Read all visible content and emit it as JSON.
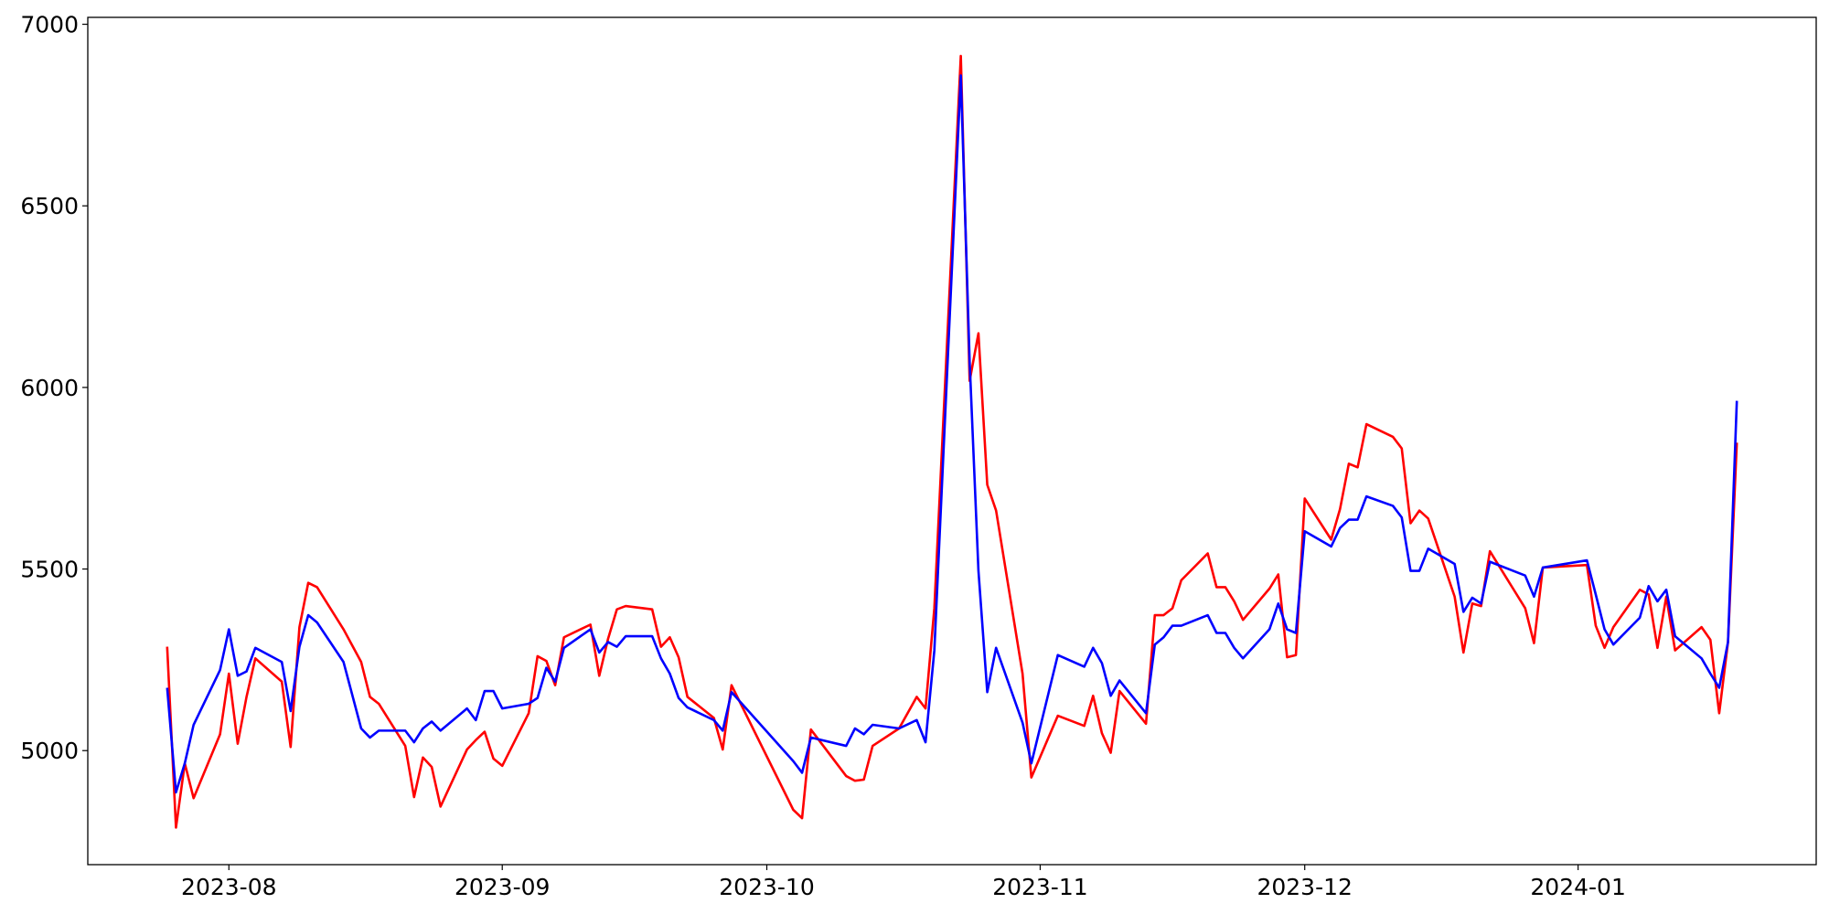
{
  "chart_data": {
    "type": "line",
    "x": [
      "2023-07-25",
      "2023-07-26",
      "2023-07-27",
      "2023-07-28",
      "2023-07-31",
      "2023-08-01",
      "2023-08-02",
      "2023-08-03",
      "2023-08-04",
      "2023-08-07",
      "2023-08-08",
      "2023-08-09",
      "2023-08-10",
      "2023-08-11",
      "2023-08-14",
      "2023-08-16",
      "2023-08-17",
      "2023-08-18",
      "2023-08-21",
      "2023-08-22",
      "2023-08-23",
      "2023-08-24",
      "2023-08-25",
      "2023-08-28",
      "2023-08-29",
      "2023-08-30",
      "2023-08-31",
      "2023-09-01",
      "2023-09-04",
      "2023-09-05",
      "2023-09-06",
      "2023-09-07",
      "2023-09-08",
      "2023-09-11",
      "2023-09-12",
      "2023-09-13",
      "2023-09-14",
      "2023-09-15",
      "2023-09-18",
      "2023-09-19",
      "2023-09-20",
      "2023-09-21",
      "2023-09-22",
      "2023-09-25",
      "2023-09-26",
      "2023-09-27",
      "2023-10-04",
      "2023-10-05",
      "2023-10-06",
      "2023-10-10",
      "2023-10-11",
      "2023-10-12",
      "2023-10-13",
      "2023-10-16",
      "2023-10-18",
      "2023-10-19",
      "2023-10-20",
      "2023-10-23",
      "2023-10-24",
      "2023-10-25",
      "2023-10-26",
      "2023-10-27",
      "2023-10-30",
      "2023-10-31",
      "2023-11-03",
      "2023-11-06",
      "2023-11-07",
      "2023-11-08",
      "2023-11-09",
      "2023-11-10",
      "2023-11-13",
      "2023-11-14",
      "2023-11-15",
      "2023-11-16",
      "2023-11-17",
      "2023-11-20",
      "2023-11-21",
      "2023-11-22",
      "2023-11-23",
      "2023-11-24",
      "2023-11-27",
      "2023-11-28",
      "2023-11-29",
      "2023-11-30",
      "2023-12-01",
      "2023-12-04",
      "2023-12-05",
      "2023-12-06",
      "2023-12-07",
      "2023-12-08",
      "2023-12-11",
      "2023-12-12",
      "2023-12-13",
      "2023-12-14",
      "2023-12-15",
      "2023-12-18",
      "2023-12-19",
      "2023-12-20",
      "2023-12-21",
      "2023-12-22",
      "2023-12-26",
      "2023-12-27",
      "2023-12-28",
      "2024-01-02",
      "2024-01-03",
      "2024-01-04",
      "2024-01-05",
      "2024-01-08",
      "2024-01-09",
      "2024-01-10",
      "2024-01-11",
      "2024-01-12",
      "2024-01-15",
      "2024-01-16",
      "2024-01-17",
      "2024-01-18",
      "2024-01-19"
    ],
    "series": [
      {
        "color": "#ff0000",
        "values": [
          5286,
          4788,
          4965,
          4869,
          5045,
          5212,
          5019,
          5148,
          5254,
          5190,
          5010,
          5340,
          5462,
          5450,
          5334,
          5244,
          5148,
          5129,
          5013,
          4872,
          4981,
          4955,
          4846,
          5003,
          5029,
          5052,
          4978,
          4958,
          5103,
          5260,
          5247,
          5180,
          5312,
          5347,
          5206,
          5308,
          5389,
          5398,
          5389,
          5286,
          5312,
          5257,
          5148,
          5090,
          5003,
          5180,
          4837,
          4814,
          5058,
          4930,
          4917,
          4920,
          5013,
          5061,
          5148,
          5116,
          5392,
          6913,
          6018,
          6149,
          5732,
          5661,
          5212,
          4926,
          5096,
          5068,
          5151,
          5048,
          4994,
          5164,
          5074,
          5373,
          5373,
          5392,
          5469,
          5543,
          5450,
          5450,
          5411,
          5360,
          5446,
          5485,
          5257,
          5263,
          5694,
          5581,
          5665,
          5790,
          5780,
          5899,
          5864,
          5832,
          5626,
          5661,
          5639,
          5424,
          5270,
          5405,
          5398,
          5549,
          5392,
          5296,
          5504,
          5511,
          5344,
          5283,
          5340,
          5443,
          5430,
          5283,
          5424,
          5276,
          5340,
          5305,
          5103,
          5299,
          5848
        ]
      },
      {
        "color": "#0000ff",
        "values": [
          5173,
          4885,
          4965,
          5071,
          5222,
          5334,
          5206,
          5218,
          5283,
          5244,
          5109,
          5286,
          5373,
          5353,
          5244,
          5061,
          5036,
          5055,
          5055,
          5023,
          5061,
          5080,
          5055,
          5116,
          5084,
          5164,
          5164,
          5116,
          5129,
          5145,
          5228,
          5190,
          5283,
          5334,
          5270,
          5299,
          5286,
          5315,
          5315,
          5254,
          5212,
          5145,
          5119,
          5084,
          5055,
          5161,
          4971,
          4939,
          5036,
          5013,
          5061,
          5045,
          5071,
          5061,
          5084,
          5023,
          5276,
          6859,
          6072,
          5495,
          5161,
          5283,
          5077,
          4965,
          5263,
          5231,
          5283,
          5241,
          5151,
          5193,
          5103,
          5292,
          5312,
          5344,
          5344,
          5373,
          5324,
          5324,
          5283,
          5254,
          5334,
          5405,
          5334,
          5324,
          5604,
          5562,
          5613,
          5636,
          5636,
          5700,
          5674,
          5642,
          5495,
          5495,
          5556,
          5514,
          5382,
          5421,
          5405,
          5520,
          5482,
          5424,
          5504,
          5524,
          5430,
          5334,
          5292,
          5366,
          5453,
          5411,
          5443,
          5315,
          5254,
          5212,
          5173,
          5299,
          5963
        ]
      }
    ],
    "xlim": [
      "2023-07-16",
      "2024-01-28"
    ],
    "xticks": [
      {
        "value": "2023-08-01",
        "label": "2023-08"
      },
      {
        "value": "2023-09-01",
        "label": "2023-09"
      },
      {
        "value": "2023-10-01",
        "label": "2023-10"
      },
      {
        "value": "2023-11-01",
        "label": "2023-11"
      },
      {
        "value": "2023-12-01",
        "label": "2023-12"
      },
      {
        "value": "2024-01-01",
        "label": "2024-01"
      }
    ],
    "ylim": [
      4686,
      7019
    ],
    "yticks": [
      5000,
      5500,
      6000,
      6500,
      7000
    ]
  }
}
